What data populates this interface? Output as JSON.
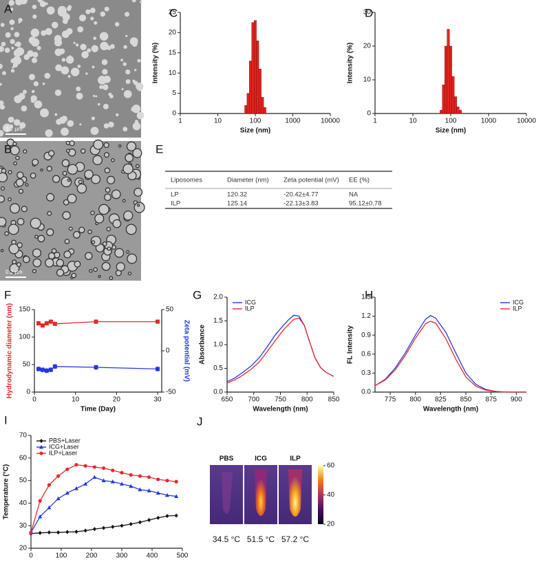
{
  "panels": [
    "A",
    "B",
    "C",
    "D",
    "E",
    "F",
    "G",
    "H",
    "I",
    "J"
  ],
  "tem": {
    "scale_labels": [
      "0.2 µm",
      "0.2 µm"
    ]
  },
  "table": {
    "header": [
      "Liposomes",
      "Diameter (nm)",
      "Zeta potential  (mV)",
      "EE  (%)"
    ],
    "rows": [
      [
        "LP",
        "120.32",
        "-20.42±4.77",
        "NA"
      ],
      [
        "ILP",
        "125.14",
        "-22.13±3.83",
        "95.12±0.78"
      ]
    ]
  },
  "thermal": {
    "labels": [
      "PBS",
      "ICG",
      "ILP"
    ],
    "temperatures": [
      "34.5 °C",
      "51.5 °C",
      "57.2 °C"
    ],
    "colorbar_range": [
      20,
      60
    ],
    "colorbar_ticks": [
      20,
      40,
      60
    ]
  },
  "chart_data": [
    {
      "type": "histogram",
      "xlabel": "Size (nm)",
      "ylabel": "Intensity (%)",
      "xscale": "log",
      "color": "#e0231e",
      "bins": [
        52,
        60,
        69,
        80,
        93,
        107,
        124,
        144,
        167,
        193
      ],
      "values": [
        2,
        5,
        13,
        22.5,
        23,
        18,
        11,
        4,
        1.5
      ],
      "xlim": [
        1,
        10000
      ],
      "xticks": [
        1,
        10,
        100,
        1000,
        10000
      ],
      "ylim": [
        0,
        25
      ],
      "yticks": [
        0,
        5,
        10,
        15,
        20,
        25
      ]
    },
    {
      "type": "histogram",
      "xlabel": "Size (nm)",
      "ylabel": "Intensity (%)",
      "xscale": "log",
      "color": "#e0231e",
      "bins": [
        52,
        60,
        69,
        80,
        93,
        107,
        124,
        144,
        167,
        193
      ],
      "values": [
        1,
        8.5,
        20,
        25,
        20,
        11,
        5,
        2,
        1
      ],
      "xlim": [
        1,
        10000
      ],
      "xticks": [
        1,
        10,
        100,
        1000,
        10000
      ],
      "ylim": [
        0,
        30
      ],
      "yticks": [
        0,
        10,
        20,
        30
      ]
    },
    {
      "type": "line",
      "xlabel": "Time (Day)",
      "ylabel": "Hydrodynamic diameter (nm)",
      "y2label": "Zeta potential (mV)",
      "x": [
        1,
        2,
        3,
        4,
        5,
        15,
        30
      ],
      "series": [
        {
          "color": "#e8272a",
          "marker": "square",
          "values": [
            125,
            121,
            125,
            128,
            124,
            128,
            128
          ],
          "errors": [
            3,
            3,
            3,
            3,
            3,
            3,
            3
          ]
        },
        {
          "color": "#2238e0",
          "marker": "square",
          "axis": "y2",
          "values": [
            -22,
            -23,
            -24,
            -23,
            -19,
            -20,
            -22
          ],
          "errors": [
            3,
            3,
            3,
            3,
            3,
            3,
            3
          ]
        }
      ],
      "xlim": [
        0,
        31
      ],
      "xticks": [
        0,
        10,
        20,
        30
      ],
      "ylim": [
        0,
        150
      ],
      "yticks": [
        0,
        50,
        100,
        150
      ],
      "y2lim": [
        -50,
        50
      ],
      "y2ticks": [
        -50,
        0,
        50
      ]
    },
    {
      "type": "line",
      "xlabel": "Wavelength (nm)",
      "ylabel": "Absorbance",
      "legend": "upper-left",
      "x": [
        650,
        665,
        680,
        695,
        710,
        725,
        740,
        755,
        765,
        775,
        785,
        795,
        805,
        815,
        825,
        835,
        850
      ],
      "series": [
        {
          "name": "ICG",
          "color": "#2238e0",
          "values": [
            0.22,
            0.3,
            0.42,
            0.55,
            0.72,
            0.95,
            1.2,
            1.4,
            1.52,
            1.62,
            1.6,
            1.4,
            1.05,
            0.72,
            0.52,
            0.42,
            0.33
          ]
        },
        {
          "name": "ILP",
          "color": "#e8272a",
          "values": [
            0.19,
            0.26,
            0.36,
            0.48,
            0.63,
            0.85,
            1.08,
            1.3,
            1.42,
            1.53,
            1.56,
            1.4,
            1.05,
            0.72,
            0.52,
            0.42,
            0.33
          ]
        }
      ],
      "xlim": [
        650,
        850
      ],
      "xticks": [
        650,
        700,
        750,
        800,
        850
      ],
      "ylim": [
        0,
        2
      ],
      "yticks": [
        {
          "value": 0,
          "label": "0.0"
        },
        0.5,
        {
          "value": 1,
          "label": "1.0"
        },
        1.5,
        {
          "value": 2,
          "label": "2.0"
        }
      ]
    },
    {
      "type": "line",
      "xlabel": "Wavelength (nm)",
      "ylabel": "FL Intensity",
      "legend": "upper-right",
      "x": [
        760,
        770,
        780,
        790,
        800,
        810,
        815,
        820,
        830,
        840,
        850,
        860,
        870,
        880,
        890,
        900,
        910
      ],
      "series": [
        {
          "name": "ICG",
          "color": "#2238e0",
          "values": [
            0.1,
            0.2,
            0.38,
            0.62,
            0.9,
            1.15,
            1.21,
            1.17,
            0.95,
            0.62,
            0.3,
            0.12,
            0.04,
            0.01,
            0,
            0,
            0
          ]
        },
        {
          "name": "ILP",
          "color": "#e8272a",
          "values": [
            0.1,
            0.19,
            0.35,
            0.58,
            0.85,
            1.08,
            1.12,
            1.09,
            0.85,
            0.52,
            0.24,
            0.09,
            0.03,
            0.01,
            0,
            0,
            0
          ]
        }
      ],
      "xlim": [
        760,
        910
      ],
      "xticks": [
        775,
        800,
        825,
        850,
        875,
        900
      ],
      "ylim": [
        0,
        1.5
      ],
      "yticks": [
        {
          "value": 0,
          "label": "0.0"
        },
        0.3,
        0.6,
        0.9,
        1.2,
        1.5
      ]
    },
    {
      "type": "line",
      "xlabel": "Time (s)",
      "ylabel": "Temperature (°C)",
      "legend": "upper-left",
      "x": [
        0,
        30,
        60,
        90,
        120,
        150,
        180,
        210,
        240,
        270,
        300,
        330,
        360,
        390,
        420,
        450,
        480
      ],
      "series": [
        {
          "name": "PBS+Laser",
          "color": "#111111",
          "marker": "diamond",
          "values": [
            26.5,
            26.8,
            27,
            27,
            27.2,
            27.3,
            27.8,
            28.5,
            29,
            29.5,
            30,
            30.7,
            31.5,
            32.5,
            33.5,
            34.3,
            34.5
          ]
        },
        {
          "name": "ICG+Laser",
          "color": "#2238e0",
          "marker": "triangle",
          "values": [
            27,
            34,
            38,
            42,
            44.5,
            46.5,
            48.5,
            51.5,
            50,
            49.5,
            48.5,
            47.5,
            46,
            45.5,
            44.5,
            43.5,
            43
          ]
        },
        {
          "name": "ILP+Laser",
          "color": "#e8272a",
          "marker": "circle",
          "values": [
            27,
            41,
            48,
            52,
            55,
            57,
            56.5,
            56,
            55.5,
            54.5,
            53.5,
            52.5,
            52,
            51.5,
            50.5,
            50,
            49.5
          ]
        }
      ],
      "xlim": [
        0,
        500
      ],
      "xticks": [
        0,
        100,
        200,
        300,
        400,
        500
      ],
      "ylim": [
        20,
        70
      ],
      "yticks": [
        20,
        30,
        40,
        50,
        60,
        70
      ]
    }
  ]
}
